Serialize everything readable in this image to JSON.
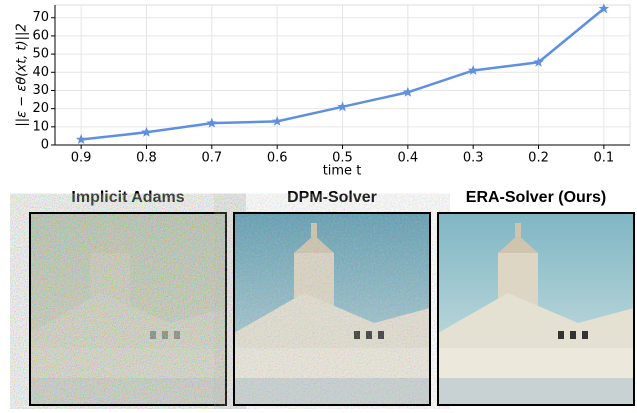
{
  "chart_data": {
    "type": "line",
    "xlabel": "time t",
    "ylabel": "||ε − εθ(xt, t)||2",
    "x": [
      0.9,
      0.8,
      0.7,
      0.6,
      0.5,
      0.4,
      0.3,
      0.2,
      0.1
    ],
    "values": [
      3,
      7,
      12,
      13,
      21,
      29,
      41,
      45.5,
      75
    ],
    "color": "#5e8fe3",
    "xlim": [
      0.94,
      0.06
    ],
    "xticks": [
      0.9,
      0.8,
      0.7,
      0.6,
      0.5,
      0.4,
      0.3,
      0.2,
      0.1
    ],
    "ylim": [
      0,
      77
    ],
    "yticks": [
      0,
      10,
      20,
      30,
      40,
      50,
      60,
      70
    ],
    "grid": true
  },
  "panels": [
    {
      "caption": "Implicit Adams"
    },
    {
      "caption": "DPM-Solver"
    },
    {
      "caption": "ERA-Solver (Ours)"
    }
  ]
}
